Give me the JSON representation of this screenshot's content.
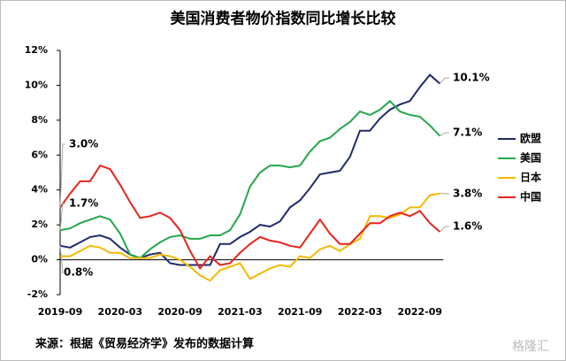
{
  "chart_data": {
    "type": "line",
    "title": "美国消费者物价指数同比增长比较",
    "source": "来源：根据《贸易经济学》发布的数据计算",
    "watermark": "格隆汇",
    "categories": [
      "2019-09",
      null,
      null,
      null,
      null,
      null,
      "2020-03",
      null,
      null,
      null,
      null,
      null,
      "2020-09",
      null,
      null,
      null,
      null,
      null,
      "2021-03",
      null,
      null,
      null,
      null,
      null,
      "2021-09",
      null,
      null,
      null,
      null,
      null,
      "2022-03",
      null,
      null,
      null,
      null,
      null,
      "2022-09",
      null,
      null
    ],
    "ylim": [
      -2,
      12
    ],
    "yticks": [
      {
        "value": -2,
        "label": "-2%"
      },
      {
        "value": 0,
        "label": "0%"
      },
      {
        "value": 2,
        "label": "2%"
      },
      {
        "value": 4,
        "label": "4%"
      },
      {
        "value": 6,
        "label": "6%"
      },
      {
        "value": 8,
        "label": "8%"
      },
      {
        "value": 10,
        "label": "10%"
      },
      {
        "value": 12,
        "label": "12%"
      }
    ],
    "legend": "right",
    "series": [
      {
        "name": "欧盟",
        "color": "#1f2a6b",
        "values": [
          0.8,
          0.7,
          1.0,
          1.3,
          1.4,
          1.2,
          0.7,
          0.3,
          0.1,
          0.3,
          0.4,
          -0.2,
          -0.3,
          -0.3,
          -0.3,
          -0.3,
          0.9,
          0.9,
          1.3,
          1.6,
          2.0,
          1.9,
          2.2,
          3.0,
          3.4,
          4.1,
          4.9,
          5.0,
          5.1,
          5.9,
          7.4,
          7.4,
          8.1,
          8.6,
          8.9,
          9.1,
          9.9,
          10.6,
          10.1
        ]
      },
      {
        "name": "美国",
        "color": "#22a84a",
        "values": [
          1.7,
          1.8,
          2.1,
          2.3,
          2.5,
          2.3,
          1.5,
          0.3,
          0.1,
          0.6,
          1.0,
          1.3,
          1.4,
          1.2,
          1.2,
          1.4,
          1.4,
          1.7,
          2.6,
          4.2,
          5.0,
          5.4,
          5.4,
          5.3,
          5.4,
          6.2,
          6.8,
          7.0,
          7.5,
          7.9,
          8.5,
          8.3,
          8.6,
          9.1,
          8.5,
          8.3,
          8.2,
          7.7,
          7.1
        ]
      },
      {
        "name": "日本",
        "color": "#f5b800",
        "values": [
          0.2,
          0.2,
          0.5,
          0.8,
          0.7,
          0.4,
          0.4,
          0.1,
          0.1,
          0.1,
          0.3,
          0.2,
          0.0,
          -0.4,
          -0.9,
          -1.2,
          -0.6,
          -0.4,
          -0.2,
          -1.1,
          -0.8,
          -0.5,
          -0.3,
          -0.4,
          0.2,
          0.1,
          0.6,
          0.8,
          0.5,
          0.9,
          1.2,
          2.5,
          2.5,
          2.4,
          2.6,
          3.0,
          3.0,
          3.7,
          3.8
        ]
      },
      {
        "name": "中国",
        "color": "#e8231c",
        "values": [
          3.0,
          3.8,
          4.5,
          4.5,
          5.4,
          5.2,
          4.3,
          3.3,
          2.4,
          2.5,
          2.7,
          2.4,
          1.7,
          0.5,
          -0.5,
          0.2,
          -0.3,
          -0.2,
          0.4,
          0.9,
          1.3,
          1.1,
          1.0,
          0.8,
          0.7,
          1.5,
          2.3,
          1.5,
          0.9,
          0.9,
          1.5,
          2.1,
          2.1,
          2.5,
          2.7,
          2.5,
          2.8,
          2.1,
          1.6
        ]
      }
    ],
    "annotations": [
      "10.1%",
      "7.1%",
      "3.8%",
      "1.6%",
      "3.0%",
      "1.7%",
      "0.8%"
    ]
  }
}
